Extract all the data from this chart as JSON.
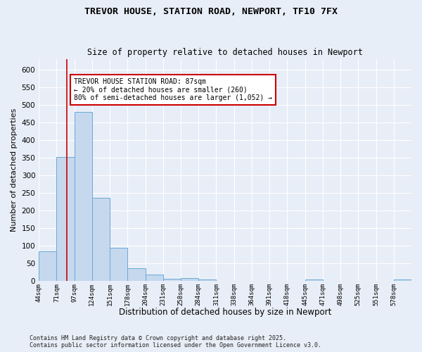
{
  "title": "TREVOR HOUSE, STATION ROAD, NEWPORT, TF10 7FX",
  "subtitle": "Size of property relative to detached houses in Newport",
  "xlabel": "Distribution of detached houses by size in Newport",
  "ylabel": "Number of detached properties",
  "bar_values": [
    85,
    352,
    480,
    236,
    95,
    37,
    18,
    6,
    8,
    5,
    0,
    0,
    0,
    0,
    0,
    5,
    0,
    0,
    0,
    0,
    5
  ],
  "bar_labels": [
    "44sqm",
    "71sqm",
    "97sqm",
    "124sqm",
    "151sqm",
    "178sqm",
    "204sqm",
    "231sqm",
    "258sqm",
    "284sqm",
    "311sqm",
    "338sqm",
    "364sqm",
    "391sqm",
    "418sqm",
    "445sqm",
    "471sqm",
    "498sqm",
    "525sqm",
    "551sqm",
    "578sqm"
  ],
  "bar_color": "#c5d8ee",
  "bar_edge_color": "#6aaad4",
  "ylim": [
    0,
    630
  ],
  "yticks": [
    0,
    50,
    100,
    150,
    200,
    250,
    300,
    350,
    400,
    450,
    500,
    550,
    600
  ],
  "property_size": 87,
  "annotation_text": "TREVOR HOUSE STATION ROAD: 87sqm\n← 20% of detached houses are smaller (260)\n80% of semi-detached houses are larger (1,052) →",
  "annotation_box_color": "#ffffff",
  "annotation_box_edge_color": "#cc0000",
  "red_line_color": "#cc0000",
  "footer": "Contains HM Land Registry data © Crown copyright and database right 2025.\nContains public sector information licensed under the Open Government Licence v3.0.",
  "bg_color": "#e8eef7",
  "plot_bg_color": "#e8eef7",
  "grid_color": "#ffffff"
}
